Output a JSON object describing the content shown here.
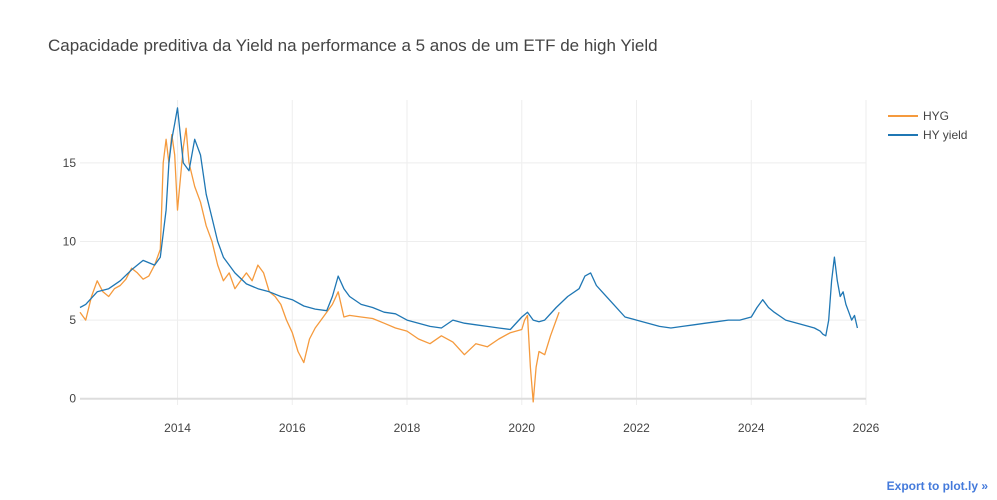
{
  "chart_data": {
    "type": "line",
    "title": "Capacidade preditiva da Yield na performance a 5 anos de um ETF de high Yield",
    "xlabel": "",
    "ylabel": "",
    "xlim": [
      2012.3,
      2026.0
    ],
    "ylim": [
      -0.4,
      19.0
    ],
    "x_ticks": [
      2014,
      2016,
      2018,
      2020,
      2022,
      2024,
      2026
    ],
    "y_ticks": [
      0,
      5,
      10,
      15
    ],
    "legend_position": "top-right",
    "series": [
      {
        "name": "HYG",
        "color": "#f59a3d",
        "x": [
          2012.3,
          2012.4,
          2012.5,
          2012.6,
          2012.7,
          2012.8,
          2012.9,
          2013.0,
          2013.1,
          2013.2,
          2013.3,
          2013.4,
          2013.5,
          2013.6,
          2013.7,
          2013.75,
          2013.8,
          2013.85,
          2013.9,
          2013.95,
          2014.0,
          2014.05,
          2014.1,
          2014.15,
          2014.2,
          2014.3,
          2014.4,
          2014.5,
          2014.6,
          2014.7,
          2014.8,
          2014.9,
          2015.0,
          2015.1,
          2015.2,
          2015.3,
          2015.4,
          2015.5,
          2015.6,
          2015.7,
          2015.8,
          2015.9,
          2016.0,
          2016.1,
          2016.2,
          2016.3,
          2016.4,
          2016.5,
          2016.6,
          2016.7,
          2016.8,
          2016.9,
          2017.0,
          2017.2,
          2017.4,
          2017.6,
          2017.8,
          2018.0,
          2018.2,
          2018.4,
          2018.6,
          2018.8,
          2019.0,
          2019.2,
          2019.4,
          2019.6,
          2019.8,
          2020.0,
          2020.05,
          2020.1,
          2020.15,
          2020.2,
          2020.25,
          2020.3,
          2020.4,
          2020.5,
          2020.6,
          2020.65
        ],
        "values": [
          5.5,
          5.0,
          6.5,
          7.5,
          6.8,
          6.5,
          7.0,
          7.2,
          7.6,
          8.3,
          8.0,
          7.6,
          7.8,
          8.5,
          9.5,
          15.0,
          16.5,
          15.0,
          16.8,
          15.5,
          12.0,
          14.0,
          16.0,
          17.2,
          15.0,
          13.5,
          12.5,
          11.0,
          10.0,
          8.5,
          7.5,
          8.0,
          7.0,
          7.5,
          8.0,
          7.5,
          8.5,
          8.0,
          6.8,
          6.5,
          6.0,
          5.0,
          4.2,
          3.0,
          2.3,
          3.8,
          4.5,
          5.0,
          5.5,
          6.0,
          6.8,
          5.2,
          5.3,
          5.2,
          5.1,
          4.8,
          4.5,
          4.3,
          3.8,
          3.5,
          4.0,
          3.6,
          2.8,
          3.5,
          3.3,
          3.8,
          4.2,
          4.4,
          5.0,
          5.3,
          2.0,
          -0.2,
          2.0,
          3.0,
          2.8,
          4.0,
          5.0,
          5.5
        ]
      },
      {
        "name": "HY yield",
        "color": "#1f77b4",
        "x": [
          2012.3,
          2012.4,
          2012.6,
          2012.8,
          2013.0,
          2013.2,
          2013.4,
          2013.6,
          2013.7,
          2013.8,
          2013.85,
          2013.9,
          2013.95,
          2014.0,
          2014.1,
          2014.2,
          2014.3,
          2014.4,
          2014.5,
          2014.6,
          2014.7,
          2014.8,
          2015.0,
          2015.2,
          2015.4,
          2015.6,
          2015.8,
          2016.0,
          2016.2,
          2016.4,
          2016.6,
          2016.7,
          2016.8,
          2016.9,
          2017.0,
          2017.2,
          2017.4,
          2017.6,
          2017.8,
          2018.0,
          2018.2,
          2018.4,
          2018.6,
          2018.8,
          2019.0,
          2019.2,
          2019.4,
          2019.6,
          2019.8,
          2020.0,
          2020.1,
          2020.2,
          2020.3,
          2020.4,
          2020.6,
          2020.8,
          2021.0,
          2021.1,
          2021.2,
          2021.3,
          2021.4,
          2021.6,
          2021.8,
          2022.0,
          2022.2,
          2022.4,
          2022.6,
          2022.8,
          2023.0,
          2023.2,
          2023.4,
          2023.6,
          2023.8,
          2024.0,
          2024.1,
          2024.2,
          2024.3,
          2024.4,
          2024.6,
          2024.8,
          2025.0,
          2025.1,
          2025.2,
          2025.25,
          2025.3,
          2025.35,
          2025.4,
          2025.45,
          2025.5,
          2025.55,
          2025.6,
          2025.65,
          2025.7,
          2025.75,
          2025.8,
          2025.85
        ],
        "values": [
          5.8,
          6.0,
          6.8,
          7.0,
          7.5,
          8.2,
          8.8,
          8.5,
          9.0,
          12.0,
          15.0,
          16.5,
          17.5,
          18.5,
          15.0,
          14.5,
          16.5,
          15.5,
          13.0,
          11.5,
          10.0,
          9.0,
          8.0,
          7.3,
          7.0,
          6.8,
          6.5,
          6.3,
          5.9,
          5.7,
          5.6,
          6.5,
          7.8,
          7.0,
          6.5,
          6.0,
          5.8,
          5.5,
          5.4,
          5.0,
          4.8,
          4.6,
          4.5,
          5.0,
          4.8,
          4.7,
          4.6,
          4.5,
          4.4,
          5.2,
          5.5,
          5.0,
          4.9,
          5.0,
          5.8,
          6.5,
          7.0,
          7.8,
          8.0,
          7.2,
          6.8,
          6.0,
          5.2,
          5.0,
          4.8,
          4.6,
          4.5,
          4.6,
          4.7,
          4.8,
          4.9,
          5.0,
          5.0,
          5.2,
          5.8,
          6.3,
          5.8,
          5.5,
          5.0,
          4.8,
          4.6,
          4.5,
          4.3,
          4.1,
          4.0,
          5.0,
          7.5,
          9.0,
          7.5,
          6.5,
          6.8,
          6.0,
          5.5,
          5.0,
          5.3,
          4.5
        ]
      }
    ]
  },
  "export_link": "Export to plot.ly »"
}
